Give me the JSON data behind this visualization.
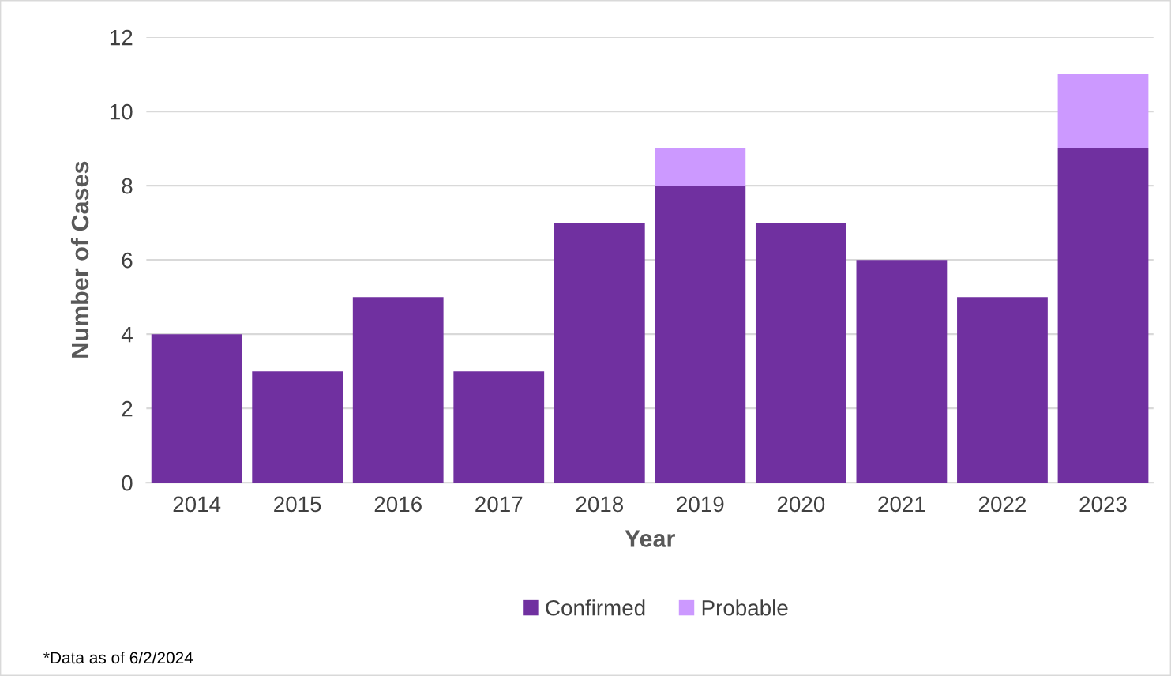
{
  "chart_data": {
    "type": "bar",
    "stacked": true,
    "xlabel": "Year",
    "ylabel": "Number of Cases",
    "categories": [
      "2014",
      "2015",
      "2016",
      "2017",
      "2018",
      "2019",
      "2020",
      "2021",
      "2022",
      "2023"
    ],
    "series": [
      {
        "name": "Confirmed",
        "color": "#7030a0",
        "values": [
          4,
          3,
          5,
          3,
          7,
          8,
          7,
          6,
          5,
          9
        ]
      },
      {
        "name": "Probable",
        "color": "#cc99ff",
        "values": [
          null,
          null,
          null,
          null,
          null,
          1,
          null,
          null,
          null,
          2
        ]
      }
    ],
    "ylim": [
      0,
      12
    ],
    "yticks": [
      0,
      2,
      4,
      6,
      8,
      10,
      12
    ],
    "grid": "y",
    "legend": "bottom",
    "annotations": [
      "*Data as of 6/2/2024"
    ]
  }
}
